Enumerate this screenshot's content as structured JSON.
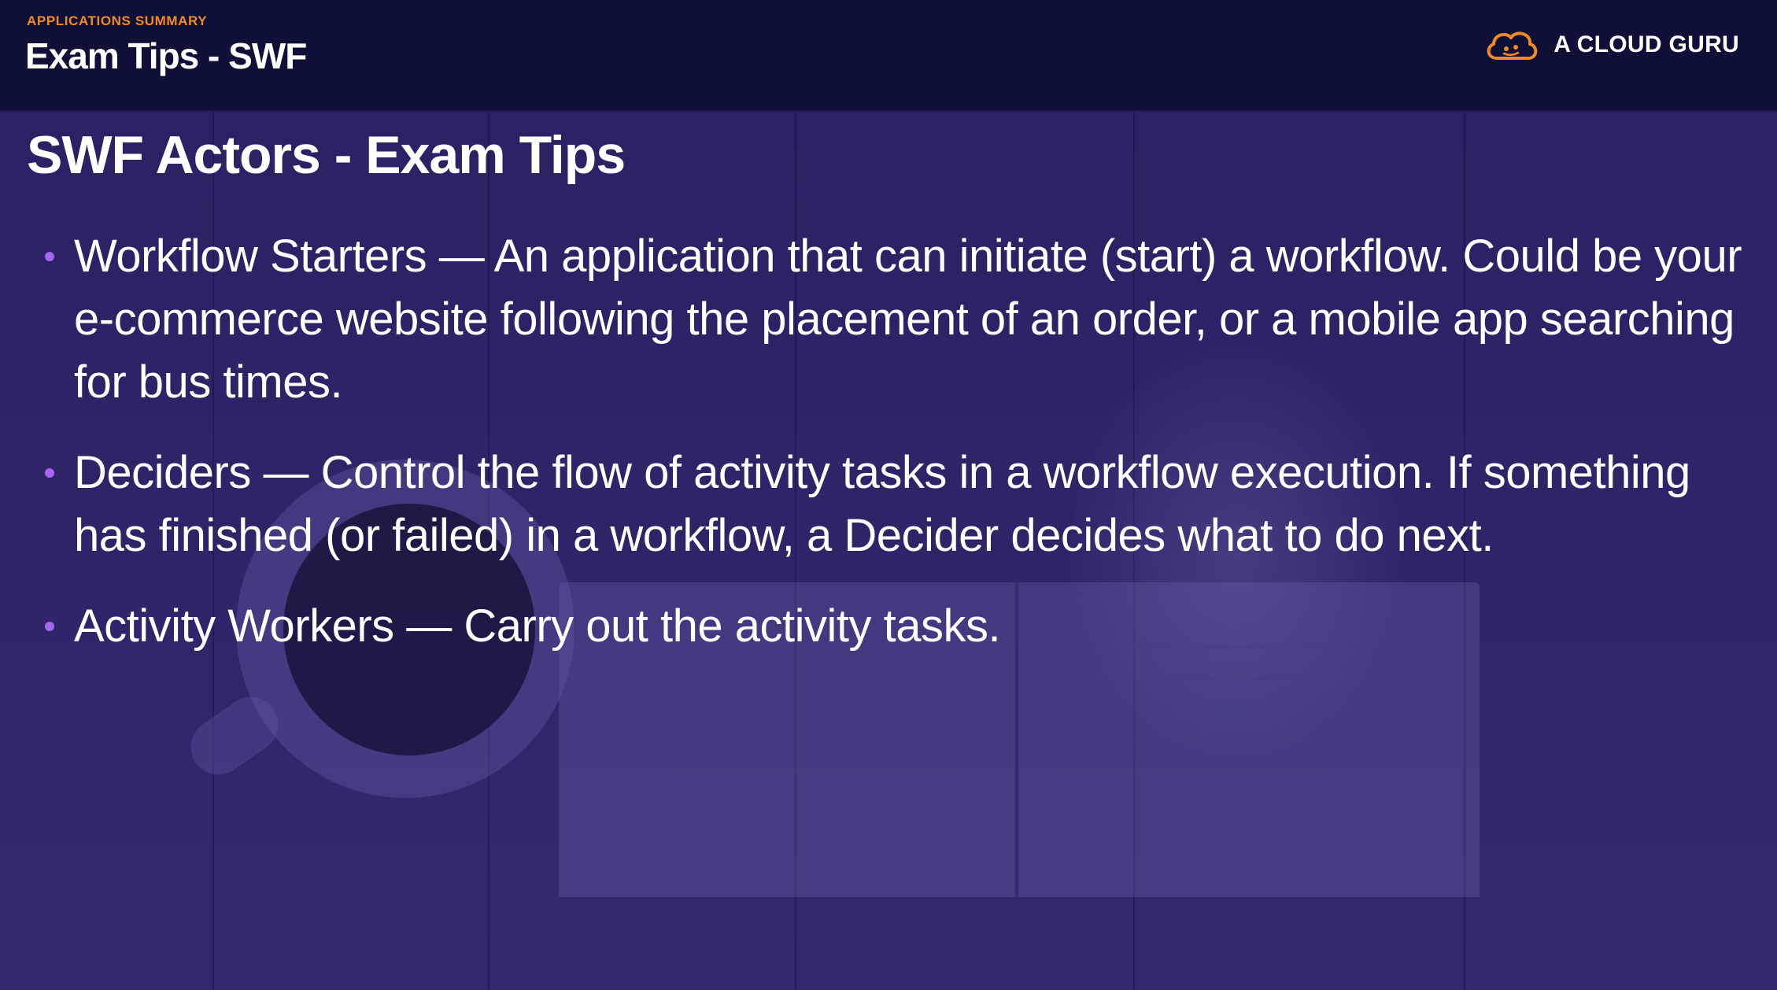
{
  "header": {
    "section_label": "APPLICATIONS SUMMARY",
    "title": "Exam Tips - SWF",
    "brand_name": "A CLOUD GURU",
    "brand_icon": "cloud-logo-icon",
    "accent_color": "#f08a24"
  },
  "slide": {
    "title": "SWF Actors - Exam Tips",
    "bullet_color": "#a565f0",
    "bullets": [
      {
        "term": "Workflow Starters",
        "text": " — An application that can initiate (start) a workflow. Could be your e-commerce website following the placement of an order, or a mobile app searching for bus times."
      },
      {
        "term": "Deciders",
        "text": " — Control the flow of activity tasks in a workflow execution. If something has finished (or failed) in a workflow, a Decider decides what to do next."
      },
      {
        "term": "Activity Workers",
        "text": " — Carry out the activity tasks."
      }
    ]
  }
}
